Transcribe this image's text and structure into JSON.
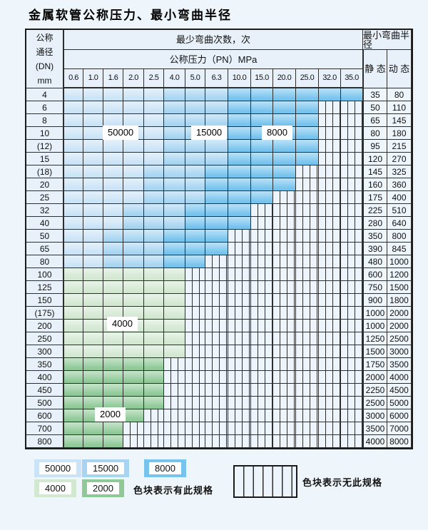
{
  "title": "金属软管公称压力、最小弯曲半径",
  "chart_data": {
    "type": "table",
    "title": "金属软管公称压力、最小弯曲半径",
    "header": {
      "dn_label_lines": [
        "公称",
        "通径",
        "(DN)",
        "mm"
      ],
      "bend_cycles_label": "最少弯曲次数，次",
      "pressure_label": "公称压力（PN）MPa",
      "radius_label": "最小弯曲半径",
      "static_label": "静 态",
      "dynamic_label": "动 态",
      "pressures": [
        "0.6",
        "1.0",
        "1.6",
        "2.0",
        "2.5",
        "4.0",
        "5.0",
        "6.3",
        "10.0",
        "15.0",
        "20.0",
        "25.0",
        "32.0",
        "35.0"
      ]
    },
    "cell_categories_legend": {
      "50000": "最少弯曲次数50000次",
      "15000": "最少弯曲次数15000次",
      "8000": "最少弯曲次数8000次",
      "4000": "最少弯曲次数4000次",
      "2000": "最少弯曲次数2000次",
      "none": "无此规格"
    },
    "rows": [
      {
        "dn": "4",
        "spans": [
          [
            "50000",
            5
          ],
          [
            "15000",
            3
          ],
          [
            "8000",
            6
          ]
        ],
        "static": "35",
        "dynamic": "80"
      },
      {
        "dn": "6",
        "spans": [
          [
            "50000",
            5
          ],
          [
            "15000",
            3
          ],
          [
            "8000",
            4
          ],
          [
            "none",
            2
          ]
        ],
        "static": "50",
        "dynamic": "110"
      },
      {
        "dn": "8",
        "spans": [
          [
            "50000",
            5
          ],
          [
            "15000",
            3
          ],
          [
            "8000",
            4
          ],
          [
            "none",
            2
          ]
        ],
        "static": "65",
        "dynamic": "145"
      },
      {
        "dn": "10",
        "spans": [
          [
            "50000",
            5
          ],
          [
            "15000",
            3
          ],
          [
            "8000",
            4
          ],
          [
            "none",
            2
          ]
        ],
        "static": "80",
        "dynamic": "180"
      },
      {
        "dn": "(12)",
        "spans": [
          [
            "50000",
            5
          ],
          [
            "15000",
            3
          ],
          [
            "8000",
            4
          ],
          [
            "none",
            2
          ]
        ],
        "static": "95",
        "dynamic": "215"
      },
      {
        "dn": "15",
        "spans": [
          [
            "50000",
            5
          ],
          [
            "15000",
            3
          ],
          [
            "8000",
            4
          ],
          [
            "none",
            2
          ]
        ],
        "static": "120",
        "dynamic": "270"
      },
      {
        "dn": "(18)",
        "spans": [
          [
            "50000",
            4
          ],
          [
            "15000",
            3
          ],
          [
            "8000",
            4
          ],
          [
            "none",
            3
          ]
        ],
        "static": "145",
        "dynamic": "325"
      },
      {
        "dn": "20",
        "spans": [
          [
            "50000",
            4
          ],
          [
            "15000",
            3
          ],
          [
            "8000",
            4
          ],
          [
            "none",
            3
          ]
        ],
        "static": "160",
        "dynamic": "360"
      },
      {
        "dn": "25",
        "spans": [
          [
            "50000",
            4
          ],
          [
            "15000",
            3
          ],
          [
            "8000",
            3
          ],
          [
            "none",
            4
          ]
        ],
        "static": "175",
        "dynamic": "400"
      },
      {
        "dn": "32",
        "spans": [
          [
            "50000",
            3
          ],
          [
            "15000",
            3
          ],
          [
            "8000",
            3
          ],
          [
            "none",
            5
          ]
        ],
        "static": "225",
        "dynamic": "510"
      },
      {
        "dn": "40",
        "spans": [
          [
            "50000",
            3
          ],
          [
            "15000",
            3
          ],
          [
            "8000",
            3
          ],
          [
            "none",
            5
          ]
        ],
        "static": "280",
        "dynamic": "640"
      },
      {
        "dn": "50",
        "spans": [
          [
            "50000",
            2
          ],
          [
            "15000",
            3
          ],
          [
            "8000",
            3
          ],
          [
            "none",
            6
          ]
        ],
        "static": "350",
        "dynamic": "800"
      },
      {
        "dn": "65",
        "spans": [
          [
            "50000",
            2
          ],
          [
            "15000",
            3
          ],
          [
            "8000",
            3
          ],
          [
            "none",
            6
          ]
        ],
        "static": "390",
        "dynamic": "845"
      },
      {
        "dn": "80",
        "spans": [
          [
            "50000",
            2
          ],
          [
            "15000",
            3
          ],
          [
            "8000",
            2
          ],
          [
            "none",
            7
          ]
        ],
        "static": "480",
        "dynamic": "1000"
      },
      {
        "dn": "100",
        "spans": [
          [
            "4000",
            6
          ],
          [
            "none",
            8
          ]
        ],
        "static": "600",
        "dynamic": "1200"
      },
      {
        "dn": "125",
        "spans": [
          [
            "4000",
            6
          ],
          [
            "none",
            8
          ]
        ],
        "static": "750",
        "dynamic": "1500"
      },
      {
        "dn": "150",
        "spans": [
          [
            "4000",
            6
          ],
          [
            "none",
            8
          ]
        ],
        "static": "900",
        "dynamic": "1800"
      },
      {
        "dn": "(175)",
        "spans": [
          [
            "4000",
            6
          ],
          [
            "none",
            8
          ]
        ],
        "static": "1000",
        "dynamic": "2000"
      },
      {
        "dn": "200",
        "spans": [
          [
            "4000",
            6
          ],
          [
            "none",
            8
          ]
        ],
        "static": "1000",
        "dynamic": "2000"
      },
      {
        "dn": "250",
        "spans": [
          [
            "4000",
            6
          ],
          [
            "none",
            8
          ]
        ],
        "static": "1250",
        "dynamic": "2500"
      },
      {
        "dn": "300",
        "spans": [
          [
            "4000",
            6
          ],
          [
            "none",
            8
          ]
        ],
        "static": "1500",
        "dynamic": "3000"
      },
      {
        "dn": "350",
        "spans": [
          [
            "2000",
            5
          ],
          [
            "none",
            9
          ]
        ],
        "static": "1750",
        "dynamic": "3500"
      },
      {
        "dn": "400",
        "spans": [
          [
            "2000",
            5
          ],
          [
            "none",
            9
          ]
        ],
        "static": "2000",
        "dynamic": "4000"
      },
      {
        "dn": "450",
        "spans": [
          [
            "2000",
            5
          ],
          [
            "none",
            9
          ]
        ],
        "static": "2250",
        "dynamic": "4500"
      },
      {
        "dn": "500",
        "spans": [
          [
            "2000",
            5
          ],
          [
            "none",
            9
          ]
        ],
        "static": "2500",
        "dynamic": "5000"
      },
      {
        "dn": "600",
        "spans": [
          [
            "2000",
            4
          ],
          [
            "none",
            10
          ]
        ],
        "static": "3000",
        "dynamic": "6000"
      },
      {
        "dn": "700",
        "spans": [
          [
            "2000",
            3
          ],
          [
            "none",
            11
          ]
        ],
        "static": "3500",
        "dynamic": "7000"
      },
      {
        "dn": "800",
        "spans": [
          [
            "2000",
            3
          ],
          [
            "none",
            11
          ]
        ],
        "static": "4000",
        "dynamic": "8000"
      }
    ]
  },
  "overlay_labels": {
    "l50000": "50000",
    "l15000": "15000",
    "l8000": "8000",
    "l4000": "4000",
    "l2000": "2000"
  },
  "legend": {
    "swatches": [
      {
        "key": "50000",
        "label": "50000"
      },
      {
        "key": "15000",
        "label": "15000"
      },
      {
        "key": "8000",
        "label": "8000"
      },
      {
        "key": "4000",
        "label": "4000"
      },
      {
        "key": "2000",
        "label": "2000"
      }
    ],
    "note_have": "色块表示有此规格",
    "note_none": "色块表示无此规格"
  },
  "colors": {
    "c50000": "#cbe3f6",
    "c15000": "#a6d4f1",
    "c8000": "#76c3ee",
    "c4000": "#d2e8d1",
    "c2000": "#8fc997",
    "striped_bg": "#edf4fb",
    "grid_line": "#2e2e2e",
    "header_bg": "#e8f1f9",
    "value_bg": "#eef5fb",
    "page_bg": "#eff6fb"
  }
}
